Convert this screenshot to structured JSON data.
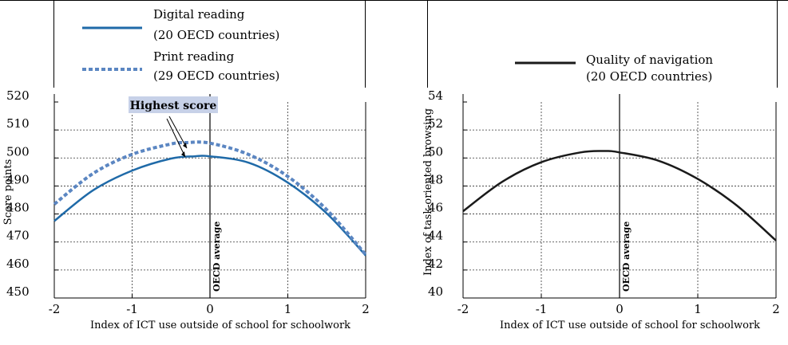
{
  "legend_left": {
    "digital_line1": "Digital reading",
    "digital_line2": "(20 OECD countries)",
    "print_line1": "Print reading",
    "print_line2": "(29 OECD countries)"
  },
  "legend_right": {
    "nav_line1": "Quality of navigation",
    "nav_line2": "(20 OECD countries)"
  },
  "annotation": {
    "highest_score": "Highest score"
  },
  "colors": {
    "digital": "#1f6aa8",
    "print": "#5b86c2",
    "navigation": "#1a1a1a",
    "highlight_box": "#c7d1e8"
  },
  "chart_data": [
    {
      "type": "line",
      "xlabel": "Index of ICT use outside of school for schoolwork",
      "ylabel": "Score points",
      "xlim": [
        -2,
        2
      ],
      "ylim": [
        450,
        520
      ],
      "xticks": [
        "-2",
        "-1",
        "0",
        "1",
        "2"
      ],
      "yticks": [
        "450",
        "460",
        "470",
        "480",
        "490",
        "500",
        "510",
        "520"
      ],
      "reference_line": {
        "x": 0,
        "label": "OECD average"
      },
      "grid": true,
      "series": [
        {
          "name": "Digital reading",
          "style": "solid",
          "x": [
            -2,
            -1.5,
            -1,
            -0.5,
            -0.2,
            0,
            0.5,
            1,
            1.5,
            2
          ],
          "y": [
            477.5,
            488.5,
            495.5,
            499.8,
            500.6,
            500.6,
            498.3,
            491.2,
            480.2,
            465.2
          ]
        },
        {
          "name": "Print reading",
          "style": "dotted",
          "x": [
            -2,
            -1.5,
            -1,
            -0.5,
            -0.3,
            0,
            0.5,
            1,
            1.5,
            2
          ],
          "y": [
            483.5,
            494.5,
            501.3,
            505.0,
            505.5,
            505.3,
            501.2,
            493.4,
            481.5,
            465.5
          ]
        }
      ]
    },
    {
      "type": "line",
      "xlabel": "Index of ICT use outside of school for schoolwork",
      "ylabel": "Index of task-oriented browsing",
      "xlim": [
        -2,
        2
      ],
      "ylim": [
        40,
        54
      ],
      "xticks": [
        "-2",
        "-1",
        "0",
        "1",
        "2"
      ],
      "yticks": [
        "40",
        "42",
        "44",
        "46",
        "48",
        "50",
        "52",
        "54"
      ],
      "reference_line": {
        "x": 0,
        "label": "OECD average"
      },
      "grid": true,
      "series": [
        {
          "name": "Quality of navigation",
          "style": "solid",
          "x": [
            -2,
            -1.5,
            -1,
            -0.5,
            -0.2,
            0,
            0.5,
            1,
            1.5,
            2
          ],
          "y": [
            46.2,
            48.3,
            49.7,
            50.4,
            50.5,
            50.4,
            49.8,
            48.5,
            46.6,
            44.1
          ]
        }
      ]
    }
  ]
}
